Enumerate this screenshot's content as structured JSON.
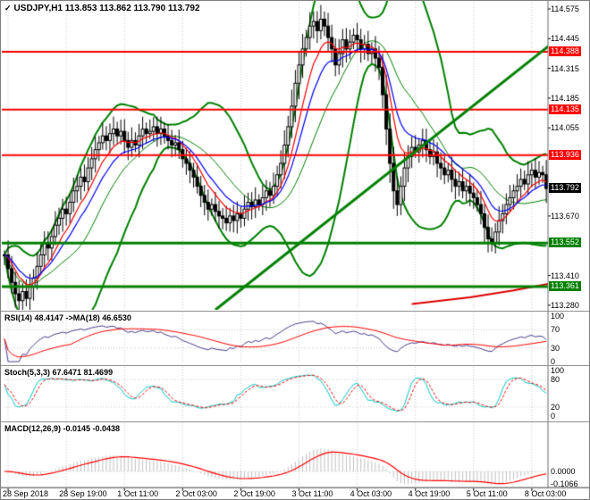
{
  "title": {
    "marker_icon": "✓",
    "symbol_period": "USDJPY,H1",
    "ohlc": "113.853 113.862 113.790 113.792"
  },
  "panels": {
    "rsi": {
      "label": "RSI(14) 48.4147 ->MA(18) 46.6530",
      "ticks": [
        "100",
        "70",
        "30",
        "0"
      ],
      "levels": [
        70,
        30
      ]
    },
    "stoch": {
      "label": "Stoch(5,3,3) 67.6471 81.4699",
      "ticks": [
        "100",
        "80",
        "20",
        "0"
      ],
      "levels": [
        80,
        20
      ]
    },
    "macd": {
      "label": "MACD(12,26,9) -0.0145 -0.0438",
      "ticks": [
        "0.0000",
        "-0.1066"
      ]
    }
  },
  "chart_data": {
    "type": "candlestick",
    "symbol": "USDJPY",
    "timeframe": "H1",
    "time_labels": [
      "28 Sep 2018",
      "28 Sep 19:00",
      "1 Oct 11:00",
      "2 Oct 03:00",
      "2 Oct 19:00",
      "3 Oct 11:00",
      "4 Oct 03:00",
      "4 Oct 19:00",
      "5 Oct 11:00",
      "8 Oct 03:00"
    ],
    "time_label_first_bar": 1,
    "bars_per_time_label": 16,
    "price_ticks": [
      "114.575",
      "114.445",
      "114.315",
      "114.185",
      "114.055",
      "113.670",
      "113.410",
      "113.280"
    ],
    "price_range": [
      113.26,
      114.61
    ],
    "closes": [
      113.5,
      113.44,
      113.38,
      113.33,
      113.3,
      113.34,
      113.31,
      113.36,
      113.4,
      113.45,
      113.5,
      113.55,
      113.53,
      113.58,
      113.63,
      113.66,
      113.7,
      113.68,
      113.73,
      113.78,
      113.8,
      113.84,
      113.82,
      113.88,
      113.92,
      113.96,
      113.99,
      114.02,
      114.0,
      114.03,
      114.05,
      114.02,
      114.04,
      114.0,
      113.97,
      114.0,
      113.98,
      114.02,
      114.05,
      114.03,
      114.04,
      114.06,
      114.03,
      114.05,
      114.02,
      114.0,
      113.98,
      113.99,
      113.96,
      113.92,
      113.9,
      113.87,
      113.84,
      113.8,
      113.76,
      113.73,
      113.7,
      113.72,
      113.69,
      113.67,
      113.66,
      113.64,
      113.67,
      113.65,
      113.68,
      113.66,
      113.7,
      113.73,
      113.71,
      113.74,
      113.72,
      113.75,
      113.78,
      113.76,
      113.8,
      113.85,
      113.9,
      113.98,
      114.06,
      114.15,
      114.25,
      114.33,
      114.4,
      114.45,
      114.5,
      114.52,
      114.48,
      114.53,
      114.5,
      114.45,
      114.4,
      114.33,
      114.38,
      114.44,
      114.4,
      114.43,
      114.46,
      114.44,
      114.4,
      114.42,
      114.38,
      114.4,
      114.36,
      114.32,
      114.2,
      114.05,
      113.9,
      113.78,
      113.72,
      113.8,
      113.88,
      113.93,
      113.97,
      113.95,
      113.98,
      114.0,
      113.96,
      113.93,
      113.95,
      113.9,
      113.88,
      113.85,
      113.87,
      113.83,
      113.8,
      113.82,
      113.78,
      113.8,
      113.77,
      113.75,
      113.72,
      113.68,
      113.62,
      113.57,
      113.55,
      113.6,
      113.65,
      113.68,
      113.72,
      113.75,
      113.78,
      113.8,
      113.83,
      113.81,
      113.85,
      113.87,
      113.84,
      113.86,
      113.85,
      113.79
    ],
    "levels": {
      "resistance": [
        114.388,
        114.135,
        113.936
      ],
      "support": [
        113.552,
        113.361
      ]
    },
    "price_badges": [
      {
        "text": "114.388",
        "type": "resistance-level",
        "color": "#ff0000"
      },
      {
        "text": "114.135",
        "type": "resistance-level",
        "color": "#ff0000"
      },
      {
        "text": "113.936",
        "type": "resistance-level",
        "color": "#ff0000"
      },
      {
        "text": "113.792",
        "type": "current-price",
        "color": "#000000"
      },
      {
        "text": "113.552",
        "type": "support-level",
        "color": "#008000"
      },
      {
        "text": "113.361",
        "type": "support-level",
        "color": "#008000"
      }
    ],
    "trendline": {
      "from_bar": 58,
      "from_price": 113.26,
      "to_bar": 151,
      "to_price": 114.43,
      "color": "#008000"
    },
    "aux_line": {
      "points": [
        [
          112,
          113.285
        ],
        [
          128,
          113.315
        ],
        [
          140,
          113.345
        ],
        [
          150,
          113.375
        ]
      ],
      "color": "#dd0000"
    },
    "overlays": {
      "bollinger_period": 20,
      "bollinger_dev": 2,
      "ma_fast": 8,
      "ma_slow": 13
    },
    "indicators": {
      "rsi_period": 14,
      "rsi_ma_period": 18,
      "stoch": [
        5,
        3,
        3
      ],
      "macd": [
        12,
        26,
        9
      ]
    },
    "colors": {
      "up": "#ffffff",
      "down": "#000000",
      "outline": "#000000",
      "bollinger": "#008000",
      "ma_fast": "#ff0000",
      "ma_slow": "#0000ff",
      "rsi": "#483d8b",
      "rsi_ma": "#ff0000",
      "stoch_k": "#00c8c8",
      "stoch_d": "#ff0000",
      "macd_hist": "#c0c0c0",
      "macd_signal": "#ff0000",
      "grid": "#c8c8c8",
      "resistance": "#ff0000",
      "support": "#008000"
    }
  }
}
